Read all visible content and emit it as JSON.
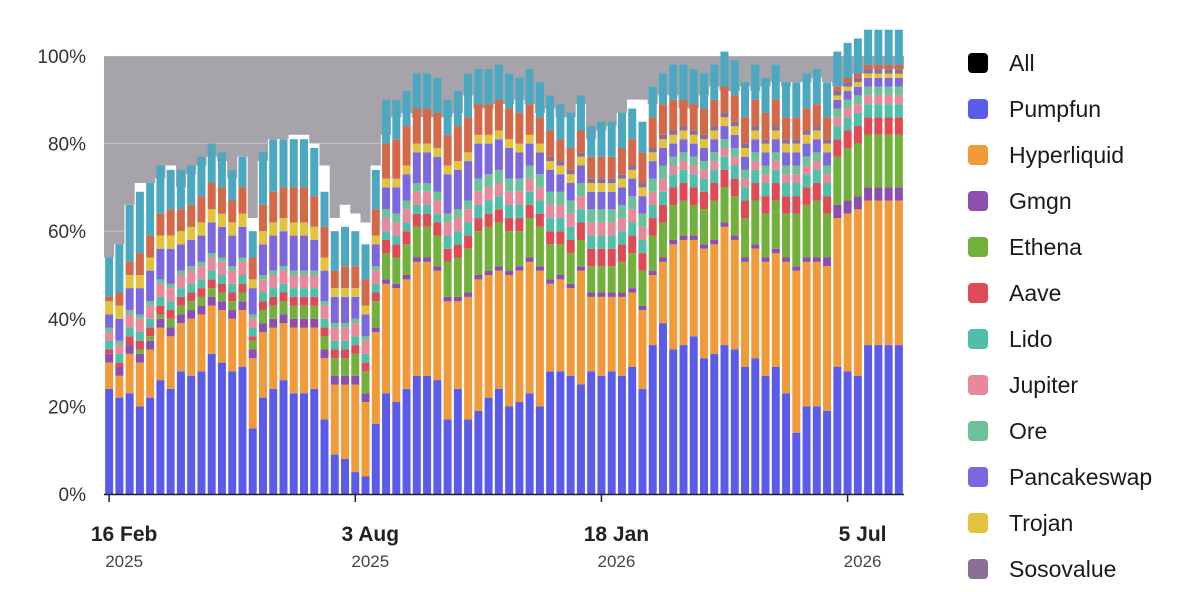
{
  "chart_data": {
    "type": "stacked-bar",
    "title": "",
    "xlabel": "",
    "ylabel": "",
    "ylim": [
      0,
      100
    ],
    "y_ticks": [
      "0%",
      "20%",
      "40%",
      "60%",
      "80%",
      "100%"
    ],
    "x_ticks": [
      {
        "label": "16 Feb",
        "year": "2025",
        "index": 0
      },
      {
        "label": "3 Aug",
        "year": "2025",
        "index": 24
      },
      {
        "label": "18 Jan",
        "year": "2026",
        "index": 48
      },
      {
        "label": "5 Jul",
        "year": "2026",
        "index": 72
      }
    ],
    "grid": true,
    "legend_position": "right",
    "background_series": "All",
    "series": [
      {
        "name": "All",
        "color": "#000000",
        "values": [
          54,
          57,
          66,
          71,
          71,
          72,
          75,
          70,
          73,
          75,
          77,
          76,
          72,
          77,
          63,
          76,
          81,
          81,
          82,
          82,
          80,
          75,
          63,
          66,
          64,
          62,
          75,
          82,
          86,
          87,
          86,
          86,
          86,
          86,
          87,
          91,
          88,
          88,
          89,
          89,
          90,
          89,
          87,
          88,
          86,
          86,
          89,
          81,
          83,
          84,
          87,
          90,
          90,
          89,
          91,
          91,
          88,
          88,
          91,
          93,
          92,
          92,
          93,
          92,
          93,
          94,
          93,
          94,
          94,
          95,
          94,
          93,
          93,
          96,
          96,
          97,
          97,
          97
        ]
      },
      {
        "name": "Pumpfun",
        "color": "#5b5bea",
        "values": [
          24,
          22,
          23,
          20,
          22,
          26,
          24,
          28,
          27,
          28,
          32,
          30,
          28,
          29,
          15,
          22,
          24,
          26,
          23,
          23,
          24,
          17,
          9,
          8,
          5,
          4,
          16,
          23,
          21,
          24,
          27,
          27,
          26,
          17,
          24,
          17,
          19,
          22,
          24,
          20,
          21,
          23,
          20,
          28,
          28,
          27,
          25,
          28,
          27,
          28,
          27,
          29,
          24,
          34,
          39,
          33,
          34,
          36,
          31,
          32,
          34,
          33,
          29,
          31,
          27,
          29,
          23,
          14,
          20,
          20,
          19,
          29,
          28,
          27,
          34,
          34,
          34,
          34
        ]
      },
      {
        "name": "Hyperliquid",
        "color": "#f09a3a",
        "values": [
          6,
          5,
          9,
          10,
          11,
          12,
          12,
          11,
          13,
          13,
          11,
          12,
          12,
          13,
          16,
          15,
          14,
          13,
          15,
          15,
          14,
          14,
          16,
          17,
          20,
          17,
          21,
          25,
          26,
          25,
          26,
          26,
          25,
          27,
          20,
          28,
          30,
          28,
          27,
          30,
          30,
          30,
          31,
          20,
          21,
          20,
          26,
          17,
          18,
          17,
          18,
          17,
          18,
          16,
          14,
          24,
          24,
          22,
          25,
          25,
          27,
          25,
          24,
          25,
          26,
          26,
          30,
          37,
          33,
          33,
          33,
          34,
          36,
          38,
          33,
          33,
          33,
          33
        ]
      },
      {
        "name": "Gmgn",
        "color": "#8c4fb0",
        "values": [
          2,
          2,
          2,
          2,
          2,
          2,
          2,
          2,
          2,
          2,
          2,
          2,
          2,
          2,
          2,
          2,
          2,
          2,
          2,
          2,
          2,
          2,
          2,
          2,
          2,
          2,
          1,
          1,
          1,
          1,
          1,
          1,
          1,
          1,
          1,
          1,
          1,
          1,
          1,
          1,
          1,
          1,
          1,
          1,
          1,
          1,
          1,
          1,
          1,
          1,
          1,
          1,
          1,
          1,
          1,
          1,
          1,
          1,
          1,
          1,
          1,
          1,
          1,
          1,
          1,
          1,
          1,
          1,
          1,
          1,
          2,
          3,
          3,
          3,
          3,
          3,
          3,
          3
        ]
      },
      {
        "name": "Ethena",
        "color": "#72b13b",
        "values": [
          0,
          0,
          0,
          1,
          1,
          1,
          2,
          2,
          2,
          2,
          2,
          2,
          2,
          2,
          2,
          3,
          3,
          3,
          3,
          3,
          3,
          3,
          4,
          4,
          5,
          5,
          6,
          6,
          6,
          7,
          7,
          7,
          7,
          8,
          9,
          10,
          10,
          10,
          10,
          9,
          8,
          9,
          9,
          8,
          7,
          7,
          6,
          6,
          6,
          6,
          7,
          8,
          8,
          8,
          8,
          8,
          8,
          7,
          8,
          9,
          8,
          9,
          9,
          10,
          10,
          11,
          10,
          12,
          12,
          13,
          10,
          11,
          12,
          12,
          12,
          12,
          12,
          12
        ]
      },
      {
        "name": "Aave",
        "color": "#e04a55",
        "values": [
          1,
          1,
          2,
          2,
          2,
          2,
          2,
          2,
          2,
          2,
          2,
          2,
          2,
          2,
          1,
          2,
          2,
          2,
          2,
          2,
          2,
          2,
          2,
          2,
          2,
          2,
          2,
          3,
          3,
          3,
          3,
          3,
          3,
          3,
          3,
          3,
          3,
          3,
          3,
          3,
          3,
          3,
          3,
          3,
          3,
          3,
          4,
          4,
          4,
          4,
          4,
          4,
          4,
          4,
          4,
          4,
          4,
          4,
          4,
          4,
          4,
          4,
          4,
          4,
          4,
          4,
          4,
          4,
          4,
          4,
          4,
          4,
          4,
          4,
          4,
          4,
          4,
          4
        ]
      },
      {
        "name": "Lido",
        "color": "#4ec0aa",
        "values": [
          2,
          2,
          2,
          2,
          2,
          2,
          2,
          2,
          2,
          2,
          2,
          2,
          2,
          2,
          2,
          2,
          2,
          2,
          2,
          2,
          2,
          2,
          2,
          2,
          2,
          2,
          2,
          2,
          2,
          2,
          2,
          2,
          2,
          3,
          3,
          3,
          3,
          3,
          3,
          3,
          3,
          3,
          3,
          3,
          3,
          3,
          3,
          3,
          3,
          3,
          3,
          3,
          3,
          3,
          3,
          3,
          3,
          3,
          3,
          3,
          3,
          3,
          3,
          3,
          3,
          3,
          3,
          3,
          3,
          3,
          3,
          3,
          3,
          3,
          3,
          3,
          3,
          3
        ]
      },
      {
        "name": "Jupiter",
        "color": "#e8889a",
        "values": [
          2,
          2,
          3,
          3,
          3,
          3,
          3,
          3,
          3,
          3,
          3,
          3,
          3,
          3,
          2,
          3,
          3,
          3,
          3,
          3,
          3,
          3,
          3,
          3,
          3,
          3,
          3,
          3,
          3,
          3,
          3,
          3,
          3,
          3,
          3,
          3,
          3,
          3,
          3,
          3,
          3,
          3,
          3,
          3,
          3,
          3,
          3,
          3,
          3,
          3,
          3,
          3,
          3,
          3,
          3,
          2,
          2,
          2,
          2,
          2,
          2,
          2,
          2,
          2,
          2,
          2,
          2,
          2,
          2,
          2,
          2,
          2,
          2,
          2,
          2,
          2,
          2,
          2
        ]
      },
      {
        "name": "Ore",
        "color": "#6cc19a",
        "values": [
          1,
          1,
          1,
          1,
          1,
          1,
          1,
          1,
          1,
          1,
          1,
          1,
          1,
          1,
          1,
          1,
          1,
          1,
          1,
          1,
          1,
          1,
          1,
          1,
          1,
          1,
          1,
          2,
          2,
          2,
          2,
          2,
          2,
          2,
          2,
          2,
          3,
          3,
          3,
          3,
          3,
          3,
          3,
          3,
          3,
          3,
          3,
          3,
          3,
          3,
          3,
          3,
          3,
          3,
          3,
          2,
          2,
          2,
          2,
          2,
          2,
          2,
          2,
          2,
          2,
          2,
          2,
          2,
          2,
          2,
          2,
          2,
          2,
          2,
          2,
          2,
          2,
          2
        ]
      },
      {
        "name": "Pancakeswap",
        "color": "#7d67de",
        "values": [
          3,
          5,
          5,
          6,
          7,
          7,
          8,
          6,
          6,
          6,
          7,
          7,
          7,
          7,
          6,
          7,
          8,
          8,
          8,
          8,
          7,
          7,
          6,
          6,
          5,
          5,
          5,
          5,
          6,
          6,
          7,
          7,
          8,
          9,
          9,
          9,
          8,
          7,
          7,
          7,
          6,
          5,
          5,
          5,
          4,
          4,
          4,
          4,
          4,
          4,
          4,
          4,
          4,
          4,
          4,
          3,
          3,
          3,
          3,
          3,
          3,
          3,
          3,
          3,
          3,
          3,
          3,
          3,
          3,
          3,
          3,
          2,
          2,
          2,
          2,
          2,
          2,
          2
        ]
      },
      {
        "name": "Trojan",
        "color": "#e3c23e",
        "values": [
          3,
          3,
          3,
          3,
          3,
          3,
          3,
          3,
          3,
          3,
          3,
          3,
          3,
          3,
          2,
          3,
          3,
          3,
          3,
          3,
          3,
          3,
          2,
          2,
          2,
          2,
          2,
          2,
          2,
          2,
          2,
          2,
          2,
          2,
          2,
          2,
          2,
          2,
          2,
          2,
          2,
          2,
          2,
          2,
          2,
          2,
          2,
          2,
          2,
          2,
          2,
          2,
          2,
          2,
          2,
          2,
          2,
          2,
          2,
          2,
          2,
          2,
          2,
          2,
          2,
          2,
          2,
          2,
          2,
          2,
          2,
          1,
          1,
          1,
          1,
          1,
          1,
          1
        ]
      },
      {
        "name": "Sosovalue",
        "color": "#8c6e94",
        "values": [
          0,
          0,
          0,
          0,
          0,
          0,
          0,
          0,
          0,
          0,
          0,
          0,
          0,
          0,
          0,
          0,
          0,
          0,
          0,
          0,
          0,
          0,
          0,
          0,
          0,
          0,
          0,
          0,
          0,
          0,
          0,
          0,
          0,
          0,
          0,
          0,
          0,
          0,
          0,
          0,
          0,
          0,
          0,
          1,
          1,
          1,
          1,
          1,
          1,
          1,
          1,
          1,
          1,
          1,
          1,
          1,
          1,
          1,
          1,
          1,
          1,
          1,
          1,
          1,
          1,
          1,
          1,
          1,
          1,
          1,
          1,
          1,
          1,
          1,
          1,
          1,
          1,
          1
        ]
      },
      {
        "name": "",
        "color": "#d4694a",
        "values": [
          1,
          3,
          3,
          5,
          5,
          5,
          6,
          5,
          5,
          6,
          6,
          6,
          5,
          6,
          5,
          6,
          7,
          7,
          8,
          8,
          7,
          7,
          4,
          5,
          5,
          6,
          6,
          8,
          9,
          9,
          8,
          8,
          8,
          7,
          8,
          8,
          7,
          7,
          7,
          7,
          7,
          7,
          6,
          6,
          5,
          5,
          5,
          5,
          5,
          5,
          6,
          6,
          7,
          7,
          7,
          7,
          6,
          6,
          6,
          6,
          6,
          6,
          6,
          6,
          6,
          6,
          5,
          5,
          5,
          5,
          5,
          1,
          1,
          1,
          1,
          1,
          1,
          1
        ]
      },
      {
        "name": "",
        "color": "#4aa9c0",
        "values": [
          9,
          11,
          13,
          14,
          12,
          11,
          9,
          9,
          9,
          9,
          9,
          8,
          7,
          7,
          6,
          12,
          12,
          11,
          11,
          11,
          11,
          8,
          9,
          9,
          8,
          8,
          9,
          10,
          9,
          8,
          8,
          8,
          8,
          8,
          8,
          10,
          8,
          8,
          8,
          8,
          8,
          8,
          8,
          8,
          8,
          8,
          8,
          7,
          8,
          8,
          8,
          7,
          7,
          7,
          7,
          8,
          8,
          8,
          8,
          8,
          8,
          8,
          8,
          8,
          8,
          8,
          8,
          8,
          8,
          8,
          8,
          8,
          8,
          8,
          8,
          8,
          8,
          8
        ]
      }
    ]
  },
  "legend": {
    "items": [
      {
        "label": "All",
        "color": "#000000"
      },
      {
        "label": "Pumpfun",
        "color": "#5b5bea"
      },
      {
        "label": "Hyperliquid",
        "color": "#f09a3a"
      },
      {
        "label": "Gmgn",
        "color": "#8c4fb0"
      },
      {
        "label": "Ethena",
        "color": "#72b13b"
      },
      {
        "label": "Aave",
        "color": "#e04a55"
      },
      {
        "label": "Lido",
        "color": "#4ec0aa"
      },
      {
        "label": "Jupiter",
        "color": "#e8889a"
      },
      {
        "label": "Ore",
        "color": "#6cc19a"
      },
      {
        "label": "Pancakeswap",
        "color": "#7d67de"
      },
      {
        "label": "Trojan",
        "color": "#e3c23e"
      },
      {
        "label": "Sosovalue",
        "color": "#8c6e94"
      }
    ]
  }
}
